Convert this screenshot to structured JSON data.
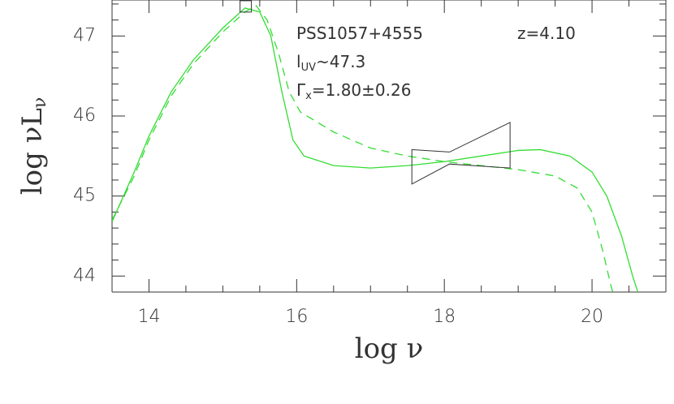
{
  "chart_data": {
    "type": "line",
    "x_label": "log ν",
    "y_label": {
      "text": "log νL",
      "sub": "ν"
    },
    "annotations": [
      {
        "text": "PSS1057+4555"
      },
      {
        "text": "z=4.10"
      },
      {
        "text": "l",
        "sub": "UV",
        "text2": "~47.3"
      },
      {
        "text": "Γ",
        "sub": "x",
        "text2": "=1.80±0.26"
      }
    ],
    "xlim": [
      13.5,
      21.0
    ],
    "ylim": [
      43.8,
      47.45
    ],
    "xticks": [
      14,
      16,
      18,
      20
    ],
    "yticks": [
      44,
      45,
      46,
      47
    ],
    "xminorticks": [
      14.5,
      15,
      15.5,
      16.5,
      17,
      17.5,
      18.5,
      19,
      19.5,
      20.5
    ],
    "yminorticks": [
      44.2,
      44.4,
      44.6,
      44.8,
      45.2,
      45.4,
      45.6,
      45.8,
      46.2,
      46.4,
      46.6,
      46.8,
      47.2,
      47.4
    ],
    "series": [
      {
        "color": "#33dd33",
        "dash": false,
        "x": [
          13.5,
          13.8,
          14.0,
          14.3,
          14.6,
          15.0,
          15.3,
          15.5,
          15.65,
          15.8,
          15.95,
          16.1,
          16.5,
          17.0,
          17.5,
          18.0,
          18.5,
          19.0,
          19.3,
          19.7,
          20.0,
          20.2,
          20.4,
          20.55,
          20.62
        ],
        "values": [
          44.68,
          45.3,
          45.75,
          46.3,
          46.7,
          47.1,
          47.35,
          47.3,
          47.0,
          46.3,
          45.7,
          45.5,
          45.38,
          45.35,
          45.38,
          45.43,
          45.5,
          45.57,
          45.58,
          45.5,
          45.3,
          45.0,
          44.5,
          44.0,
          43.8
        ]
      },
      {
        "color": "#33dd33",
        "dash": true,
        "x": [
          13.5,
          13.8,
          14.0,
          14.3,
          14.6,
          15.0,
          15.3,
          15.45,
          15.6,
          15.75,
          15.9,
          16.05,
          16.5,
          17.0,
          17.5,
          18.0,
          18.5,
          19.0,
          19.5,
          19.8,
          20.0,
          20.15,
          20.25,
          20.28
        ],
        "values": [
          44.7,
          45.25,
          45.7,
          46.25,
          46.65,
          47.05,
          47.3,
          47.38,
          47.2,
          46.8,
          46.3,
          46.05,
          45.8,
          45.6,
          45.5,
          45.43,
          45.38,
          45.33,
          45.25,
          45.1,
          44.8,
          44.3,
          43.9,
          43.8
        ]
      }
    ],
    "bowtie": {
      "x": [
        17.56,
        18.07,
        18.89,
        18.89,
        18.07,
        17.56
      ],
      "y": [
        45.58,
        45.55,
        45.92,
        45.35,
        45.4,
        45.15
      ]
    },
    "uv_point": {
      "x": 15.31,
      "y": 47.37
    }
  }
}
